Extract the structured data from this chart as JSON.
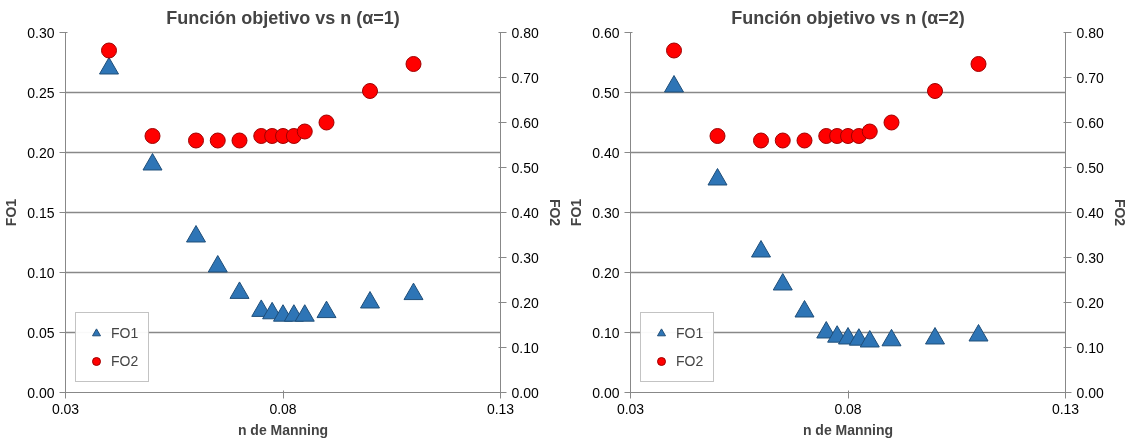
{
  "chart_data": [
    {
      "type": "scatter",
      "title": "Función objetivo vs n (α=1)",
      "xlabel": "n de Manning",
      "ylabel": "FO1",
      "y2label": "FO2",
      "grid": "y",
      "legend": "bottom left",
      "xlim": [
        0.03,
        0.13
      ],
      "xticks": [
        0.03,
        0.08,
        0.13
      ],
      "ylim": [
        0,
        0.3
      ],
      "yticks": [
        {
          "value": 0,
          "label": "0.00"
        },
        {
          "value": 0.05,
          "label": "0.05"
        },
        {
          "value": 0.1,
          "label": "0.10"
        },
        {
          "value": 0.15,
          "label": "0.15"
        },
        {
          "value": 0.2,
          "label": "0.20"
        },
        {
          "value": 0.25,
          "label": "0.25"
        },
        {
          "value": 0.3,
          "label": "0.30"
        }
      ],
      "y2lim": [
        0,
        0.8
      ],
      "y2ticks": [
        {
          "value": 0,
          "label": "0.00"
        },
        {
          "value": 0.1,
          "label": "0.10"
        },
        {
          "value": 0.2,
          "label": "0.20"
        },
        {
          "value": 0.3,
          "label": "0.30"
        },
        {
          "value": 0.4,
          "label": "0.40"
        },
        {
          "value": 0.5,
          "label": "0.50"
        },
        {
          "value": 0.6,
          "label": "0.60"
        },
        {
          "value": 0.7,
          "label": "0.70"
        },
        {
          "value": 0.8,
          "label": "0.80"
        }
      ],
      "x": [
        0.04,
        0.05,
        0.06,
        0.065,
        0.07,
        0.075,
        0.0775,
        0.08,
        0.0825,
        0.085,
        0.09,
        0.1,
        0.11
      ],
      "series": [
        {
          "name": "FO1",
          "color": "#2e75b6",
          "marker": "triangle",
          "values": [
            0.27,
            0.19,
            0.13,
            0.105,
            0.083,
            0.068,
            0.066,
            0.064,
            0.064,
            0.064,
            0.067,
            0.075,
            0.082
          ]
        },
        {
          "name": "FO2",
          "color": "#ff0000",
          "marker": "circle",
          "axis": "y2",
          "values": [
            0.76,
            0.57,
            0.56,
            0.56,
            0.56,
            0.57,
            0.57,
            0.57,
            0.57,
            0.58,
            0.6,
            0.67,
            0.73
          ]
        }
      ]
    },
    {
      "type": "scatter",
      "title": "Función objetivo vs n (α=2)",
      "xlabel": "n de Manning",
      "ylabel": "FO1",
      "y2label": "FO2",
      "grid": "y",
      "legend": "bottom left",
      "xlim": [
        0.03,
        0.13
      ],
      "xticks": [
        0.03,
        0.08,
        0.13
      ],
      "ylim": [
        0,
        0.6
      ],
      "yticks": [
        {
          "value": 0,
          "label": "0.00"
        },
        {
          "value": 0.1,
          "label": "0.10"
        },
        {
          "value": 0.2,
          "label": "0.20"
        },
        {
          "value": 0.3,
          "label": "0.30"
        },
        {
          "value": 0.4,
          "label": "0.40"
        },
        {
          "value": 0.5,
          "label": "0.50"
        },
        {
          "value": 0.6,
          "label": "0.60"
        }
      ],
      "y2lim": [
        0,
        0.8
      ],
      "y2ticks": [
        {
          "value": 0,
          "label": "0.00"
        },
        {
          "value": 0.1,
          "label": "0.10"
        },
        {
          "value": 0.2,
          "label": "0.20"
        },
        {
          "value": 0.3,
          "label": "0.30"
        },
        {
          "value": 0.4,
          "label": "0.40"
        },
        {
          "value": 0.5,
          "label": "0.50"
        },
        {
          "value": 0.6,
          "label": "0.60"
        },
        {
          "value": 0.7,
          "label": "0.70"
        },
        {
          "value": 0.8,
          "label": "0.80"
        }
      ],
      "x": [
        0.04,
        0.05,
        0.06,
        0.065,
        0.07,
        0.075,
        0.0775,
        0.08,
        0.0825,
        0.085,
        0.09,
        0.1,
        0.11
      ],
      "series": [
        {
          "name": "FO1",
          "color": "#2e75b6",
          "marker": "triangle",
          "values": [
            0.51,
            0.355,
            0.235,
            0.18,
            0.135,
            0.1,
            0.093,
            0.09,
            0.088,
            0.085,
            0.087,
            0.09,
            0.095
          ]
        },
        {
          "name": "FO2",
          "color": "#ff0000",
          "marker": "circle",
          "axis": "y2",
          "values": [
            0.76,
            0.57,
            0.56,
            0.56,
            0.56,
            0.57,
            0.57,
            0.57,
            0.57,
            0.58,
            0.6,
            0.67,
            0.73
          ]
        }
      ]
    }
  ]
}
